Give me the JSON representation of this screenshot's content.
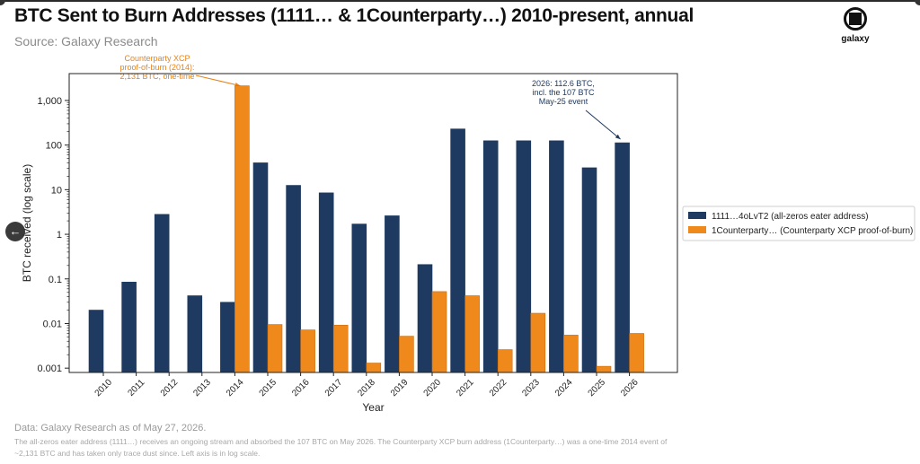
{
  "header": {
    "title": "BTC Sent to Burn Addresses (1111… & 1Counterparty…) 2010-present, annual",
    "subtitle": "Source: Galaxy Research",
    "logo_text": "galaxy"
  },
  "nav": {
    "back_icon": "arrow-left-icon",
    "back_glyph": "←"
  },
  "footer": {
    "note": "Data: Galaxy Research as of May 27, 2026.",
    "detail": "The all-zeros eater address (1111…) receives an ongoing stream and absorbed the 107 BTC on May 2026. The Counterparty XCP burn address (1Counterparty…) was a one-time 2014 event of ~2,131 BTC and has taken only trace dust since. Left axis is in log scale."
  },
  "colors": {
    "series_1": "#1f3a60",
    "series_2": "#f0891c",
    "annotation_1": "#1f3a60",
    "annotation_2": "#e8821a"
  },
  "chart_data": {
    "type": "bar",
    "yscale": "log",
    "xlabel": "Year",
    "ylabel": "BTC received (log scale)",
    "ylim": [
      0.0008,
      4000
    ],
    "yticks": [
      0.001,
      0.01,
      0.1,
      1,
      10,
      100,
      1000
    ],
    "ytick_labels": [
      "0.001",
      "0.01",
      "0.1",
      "1",
      "10",
      "100",
      "1,000"
    ],
    "grid": false,
    "legend_position": "right",
    "categories": [
      "2010",
      "2011",
      "2012",
      "2013",
      "2014",
      "2015",
      "2016",
      "2017",
      "2018",
      "2019",
      "2020",
      "2021",
      "2022",
      "2023",
      "2024",
      "2025",
      "2026"
    ],
    "series": [
      {
        "name": "1111…4oLvT2  (all-zeros eater address)",
        "values": [
          0.02,
          0.085,
          2.8,
          0.042,
          0.03,
          40,
          12.5,
          8.5,
          1.7,
          2.6,
          0.21,
          230,
          125,
          125,
          125,
          31,
          112.6
        ]
      },
      {
        "name": "1Counterparty…  (Counterparty XCP proof-of-burn)",
        "values": [
          null,
          null,
          null,
          null,
          2131,
          0.0095,
          0.0072,
          0.0092,
          0.0013,
          0.0052,
          0.052,
          0.042,
          0.0026,
          0.017,
          0.0055,
          0.0011,
          0.006
        ]
      }
    ],
    "annotations": [
      {
        "text": [
          "Counterparty XCP",
          "proof-of-burn (2014):",
          "2,131 BTC, one-time"
        ],
        "series": 1,
        "category": "2014"
      },
      {
        "text": [
          "2026: 112.6 BTC,",
          "incl. the 107 BTC",
          "May-25 event"
        ],
        "series": 0,
        "category": "2026"
      }
    ]
  }
}
